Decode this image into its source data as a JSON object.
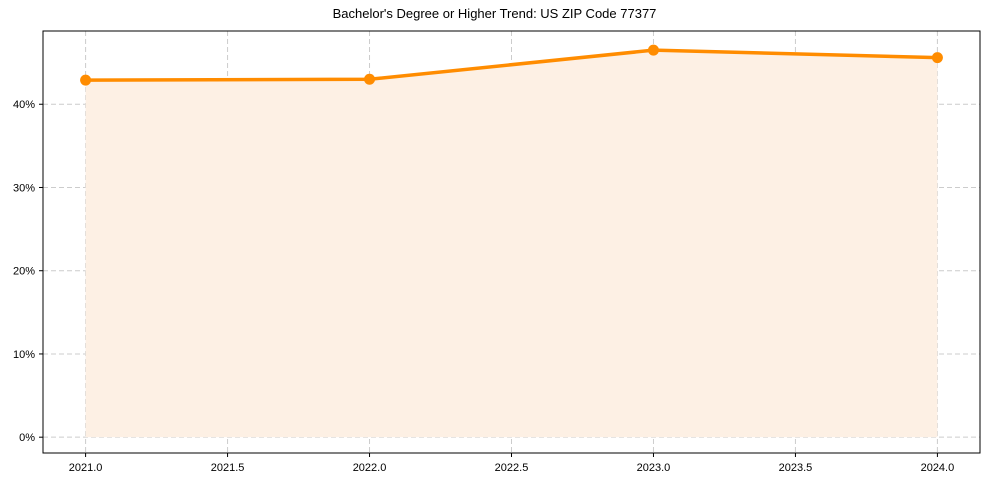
{
  "chart_data": {
    "type": "line",
    "title": "Bachelor's Degree or Higher Trend: US ZIP Code 77377",
    "xlabel": "",
    "ylabel": "",
    "x": [
      2021,
      2022,
      2023,
      2024
    ],
    "series": [
      {
        "name": "Bachelor's Degree or Higher",
        "values": [
          42.9,
          43.0,
          46.5,
          45.6
        ],
        "color": "#ff8c00",
        "fill": "#fdf0e4"
      }
    ],
    "xticks": [
      "2021.0",
      "2021.5",
      "2022.0",
      "2022.5",
      "2023.0",
      "2023.5",
      "2024.0"
    ],
    "yticks": [
      "0%",
      "10%",
      "20%",
      "30%",
      "40%"
    ],
    "xlim": [
      2020.85,
      2024.15
    ],
    "ylim": [
      -1.9,
      48.8
    ],
    "grid": true,
    "legend": null
  }
}
